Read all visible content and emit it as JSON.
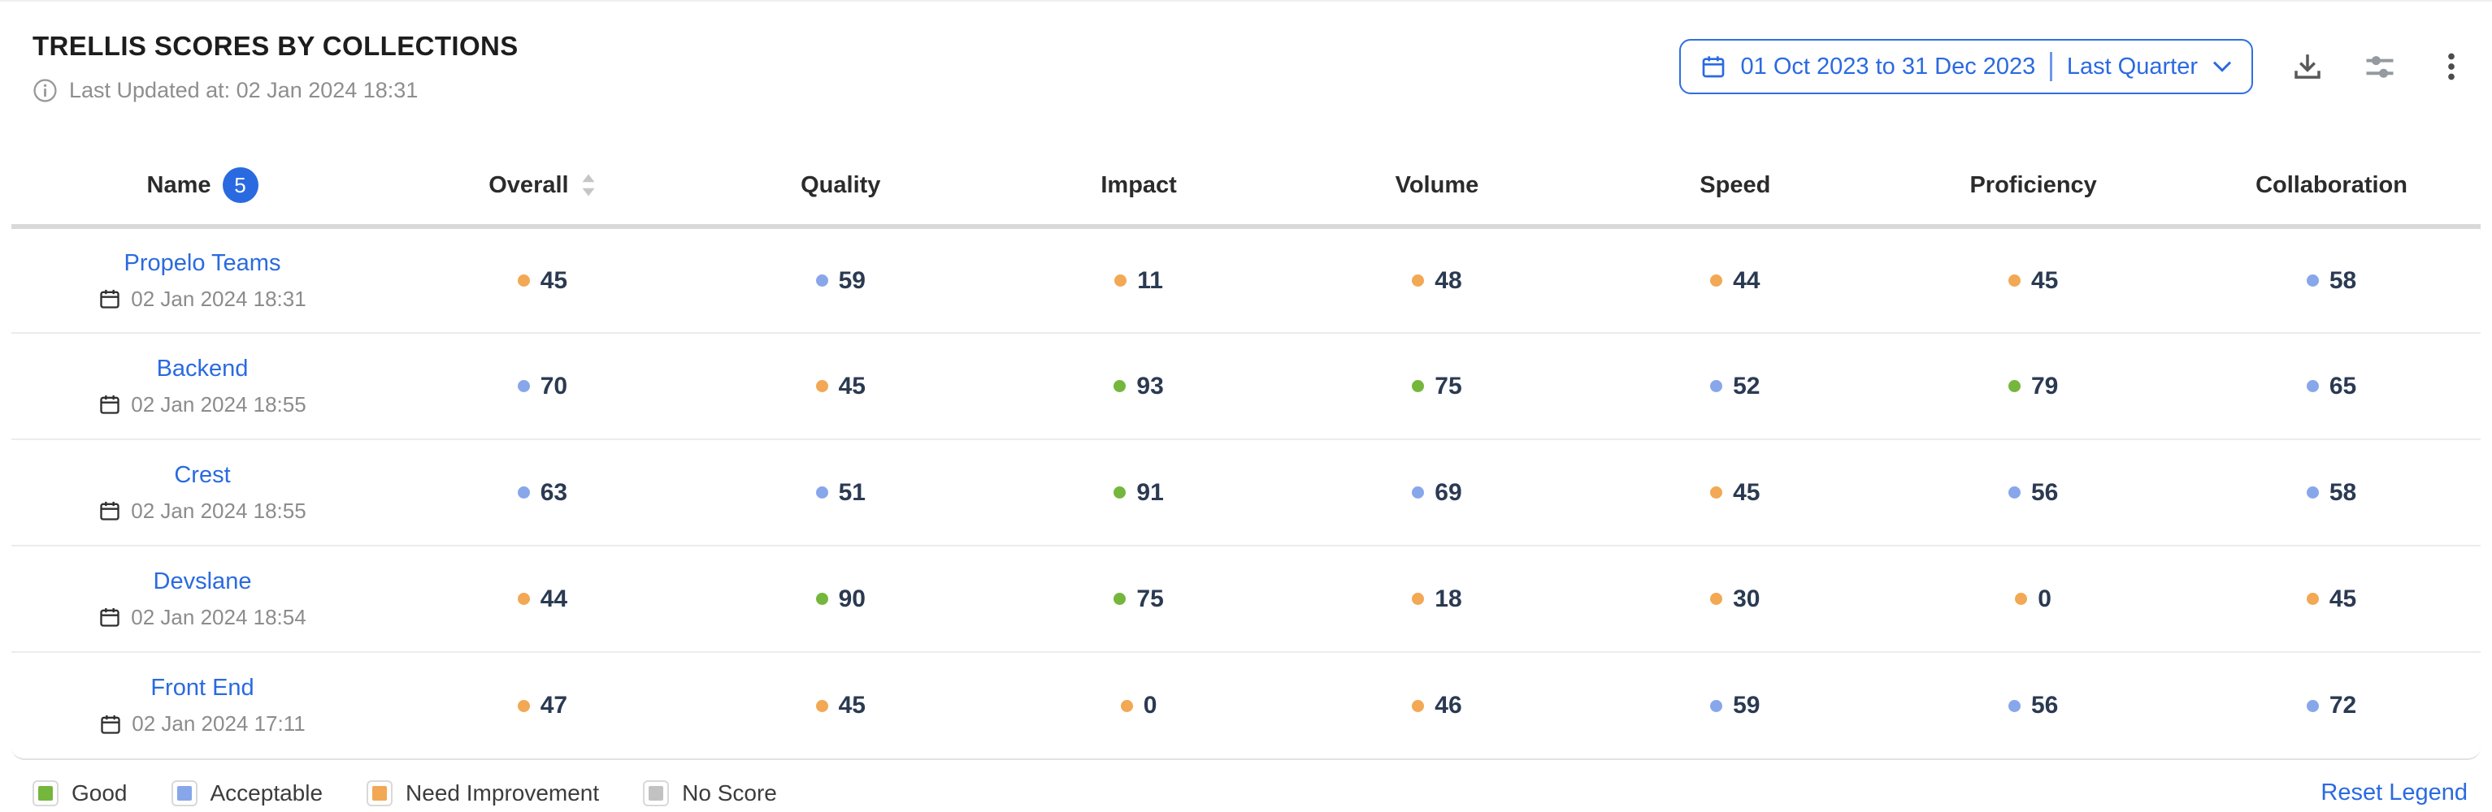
{
  "header": {
    "title": "TRELLIS SCORES BY COLLECTIONS",
    "last_updated": "Last Updated at: 02 Jan 2024 18:31",
    "date_range": "01 Oct 2023 to 31 Dec 2023",
    "date_preset": "Last Quarter"
  },
  "toolbar_icons": [
    "download-icon",
    "sliders-icon",
    "kebab-menu-icon"
  ],
  "colors": {
    "green": "#74b73c",
    "blue": "#87a7ea",
    "orange": "#f2a854",
    "gray": "#c2c2c2",
    "accent": "#2a6ae0"
  },
  "table": {
    "columns": [
      {
        "label": "Name",
        "badge": "5"
      },
      {
        "label": "Overall",
        "sortable": true
      },
      {
        "label": "Quality"
      },
      {
        "label": "Impact"
      },
      {
        "label": "Volume"
      },
      {
        "label": "Speed"
      },
      {
        "label": "Proficiency"
      },
      {
        "label": "Collaboration"
      }
    ],
    "rows": [
      {
        "name": "Propelo Teams",
        "date": "02 Jan 2024 18:31",
        "scores": [
          {
            "v": "45",
            "c": "orange"
          },
          {
            "v": "59",
            "c": "blue"
          },
          {
            "v": "11",
            "c": "orange"
          },
          {
            "v": "48",
            "c": "orange"
          },
          {
            "v": "44",
            "c": "orange"
          },
          {
            "v": "45",
            "c": "orange"
          },
          {
            "v": "58",
            "c": "blue"
          }
        ]
      },
      {
        "name": "Backend",
        "date": "02 Jan 2024 18:55",
        "scores": [
          {
            "v": "70",
            "c": "blue"
          },
          {
            "v": "45",
            "c": "orange"
          },
          {
            "v": "93",
            "c": "green"
          },
          {
            "v": "75",
            "c": "green"
          },
          {
            "v": "52",
            "c": "blue"
          },
          {
            "v": "79",
            "c": "green"
          },
          {
            "v": "65",
            "c": "blue"
          }
        ]
      },
      {
        "name": "Crest",
        "date": "02 Jan 2024 18:55",
        "scores": [
          {
            "v": "63",
            "c": "blue"
          },
          {
            "v": "51",
            "c": "blue"
          },
          {
            "v": "91",
            "c": "green"
          },
          {
            "v": "69",
            "c": "blue"
          },
          {
            "v": "45",
            "c": "orange"
          },
          {
            "v": "56",
            "c": "blue"
          },
          {
            "v": "58",
            "c": "blue"
          }
        ]
      },
      {
        "name": "Devslane",
        "date": "02 Jan 2024 18:54",
        "scores": [
          {
            "v": "44",
            "c": "orange"
          },
          {
            "v": "90",
            "c": "green"
          },
          {
            "v": "75",
            "c": "green"
          },
          {
            "v": "18",
            "c": "orange"
          },
          {
            "v": "30",
            "c": "orange"
          },
          {
            "v": "0",
            "c": "orange"
          },
          {
            "v": "45",
            "c": "orange"
          }
        ]
      },
      {
        "name": "Front End",
        "date": "02 Jan 2024 17:11",
        "scores": [
          {
            "v": "47",
            "c": "orange"
          },
          {
            "v": "45",
            "c": "orange"
          },
          {
            "v": "0",
            "c": "orange"
          },
          {
            "v": "46",
            "c": "orange"
          },
          {
            "v": "59",
            "c": "blue"
          },
          {
            "v": "56",
            "c": "blue"
          },
          {
            "v": "72",
            "c": "blue"
          }
        ]
      }
    ]
  },
  "legend": {
    "items": [
      {
        "label": "Good",
        "color": "green"
      },
      {
        "label": "Acceptable",
        "color": "blue"
      },
      {
        "label": "Need Improvement",
        "color": "orange"
      },
      {
        "label": "No Score",
        "color": "gray"
      }
    ],
    "reset_label": "Reset Legend"
  }
}
